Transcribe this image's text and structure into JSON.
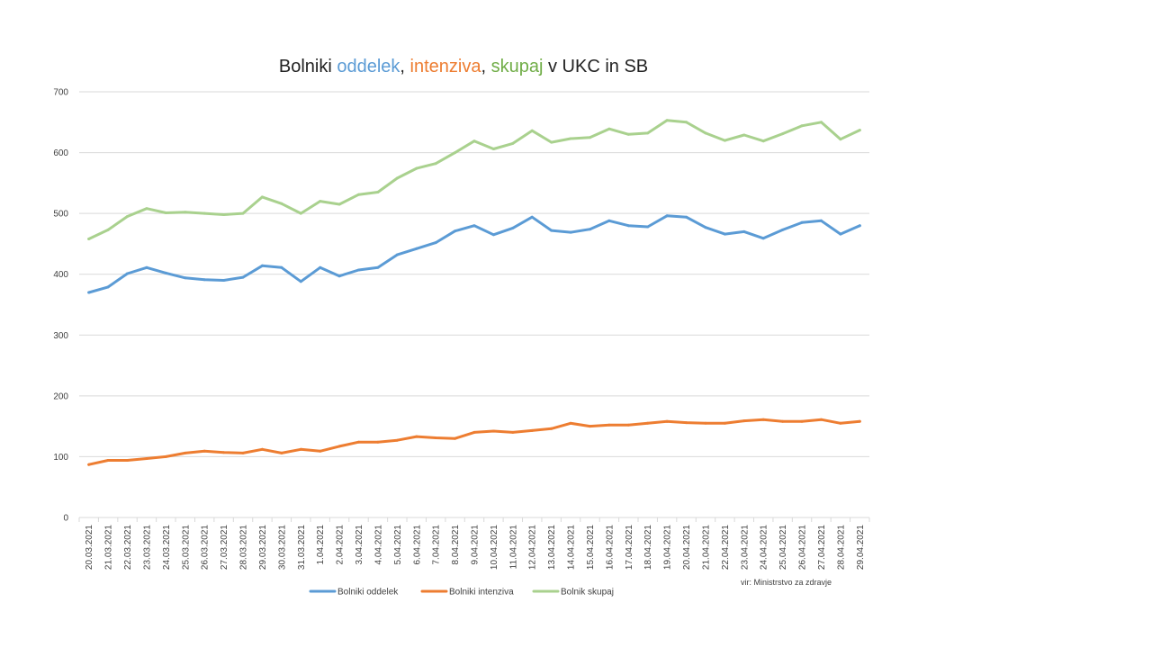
{
  "chart_data": {
    "type": "line",
    "title_parts": [
      {
        "text": "Bolniki ",
        "color": "#222222"
      },
      {
        "text": "oddelek",
        "color": "#5b9bd5"
      },
      {
        "text": ", ",
        "color": "#222222"
      },
      {
        "text": "intenziva",
        "color": "#ed7d31"
      },
      {
        "text": ", ",
        "color": "#222222"
      },
      {
        "text": "skupaj",
        "color": "#70ad47"
      },
      {
        "text": " v UKC  in SB",
        "color": "#222222"
      }
    ],
    "xlabel": "",
    "ylabel": "",
    "ylim": [
      0,
      700
    ],
    "yticks": [
      0,
      100,
      200,
      300,
      400,
      500,
      600,
      700
    ],
    "grid": true,
    "legend_position": "bottom",
    "source_note": "vir: Ministrstvo za zdravje",
    "categories": [
      "20.03.2021",
      "21.03.2021",
      "22.03.2021",
      "23.03.2021",
      "24.03.2021",
      "25.03.2021",
      "26.03.2021",
      "27.03.2021",
      "28.03.2021",
      "29.03.2021",
      "30.03.2021",
      "31.03.2021",
      "1.04.2021",
      "2.04.2021",
      "3.04.2021",
      "4.04.2021",
      "5.04.2021",
      "6.04.2021",
      "7.04.2021",
      "8.04.2021",
      "9.04.2021",
      "10.04.2021",
      "11.04.2021",
      "12.04.2021",
      "13.04.2021",
      "14.04.2021",
      "15.04.2021",
      "16.04.2021",
      "17.04.2021",
      "18.04.2021",
      "19.04.2021",
      "20.04.2021",
      "21.04.2021",
      "22.04.2021",
      "23.04.2021",
      "24.04.2021",
      "25.04.2021",
      "26.04.2021",
      "27.04.2021",
      "28.04.2021",
      "29.04.2021"
    ],
    "series": [
      {
        "name": "Bolniki oddelek",
        "color": "#5b9bd5",
        "values": [
          370,
          379,
          401,
          411,
          402,
          394,
          391,
          390,
          395,
          414,
          411,
          388,
          411,
          397,
          407,
          411,
          432,
          442,
          452,
          471,
          480,
          465,
          476,
          494,
          472,
          469,
          474,
          488,
          480,
          478,
          496,
          494,
          477,
          466,
          470,
          459,
          473,
          485,
          488,
          466,
          480
        ]
      },
      {
        "name": "Bolniki intenziva",
        "color": "#ed7d31",
        "values": [
          87,
          94,
          94,
          97,
          100,
          106,
          109,
          107,
          106,
          112,
          106,
          112,
          109,
          117,
          124,
          124,
          127,
          133,
          131,
          130,
          140,
          142,
          140,
          143,
          146,
          155,
          150,
          152,
          152,
          155,
          158,
          156,
          155,
          155,
          159,
          161,
          158,
          158,
          161,
          155,
          158
        ]
      },
      {
        "name": "Bolnik skupaj",
        "color": "#a9d18e",
        "values": [
          458,
          473,
          495,
          508,
          501,
          502,
          500,
          498,
          500,
          527,
          516,
          500,
          520,
          515,
          531,
          535,
          558,
          574,
          582,
          600,
          619,
          606,
          615,
          636,
          617,
          623,
          625,
          639,
          630,
          632,
          653,
          650,
          632,
          620,
          629,
          619,
          631,
          644,
          650,
          622,
          637
        ]
      }
    ]
  }
}
